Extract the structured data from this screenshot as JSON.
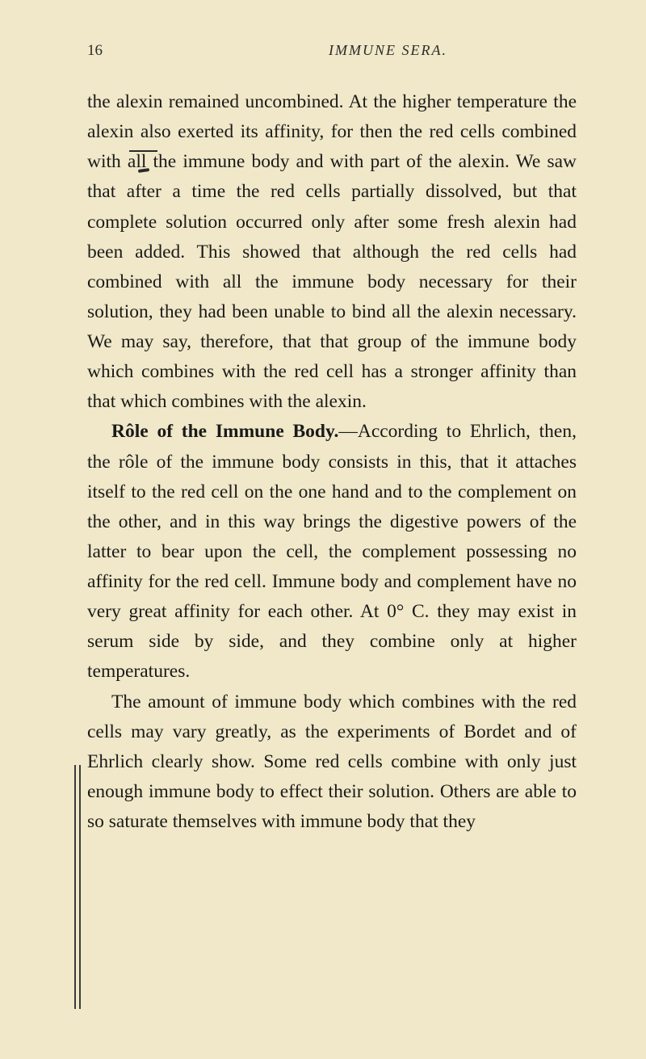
{
  "page": {
    "number": "16",
    "runningTitle": "IMMUNE SERA.",
    "background_color": "#f0e8c8",
    "text_color": "#1a1a1a",
    "font_size_body": 23.5,
    "font_size_header": 18,
    "line_height": 1.58
  },
  "paragraphs": {
    "p1_part1": "the alexin remained uncombined. At the higher temperature the alexin also exerted its affinity, for then the red cells combined with ",
    "p1_all": "all",
    "p1_part2": " the immune body and with part of the alexin. We saw that after a time the red cells partially dissolved, but that complete solution occurred only after some fresh alexin had been added. This showed that although the red cells had combined with all the immune body necessary for their solution, they had been unable to bind all the alexin necessary. We may say, therefore, that that group of the immune body which combines with the red cell has a stronger affinity than that which combines with the alexin.",
    "p2_heading": "Rôle of the Immune Body.",
    "p2_part1": "—According to Ehrlich, then, the rôle of the immune body consists in this, that it attaches itself to the red cell on the one hand and to the complement on the other, and in this way brings the digestive powers of the latter to bear upon the cell, the complement possessing no affinity for the red cell. Immune body and complement have no very great affinity for each other. At 0° C. they may exist in serum side by side, and they combine only at higher temperatures.",
    "p3": "The amount of immune body which combines with the red cells may vary greatly, as the experiments of Bordet and of Ehrlich clearly show. Some red cells combine with only just enough immune body to effect their solution. Others are able to so saturate themselves with immune body that they"
  }
}
